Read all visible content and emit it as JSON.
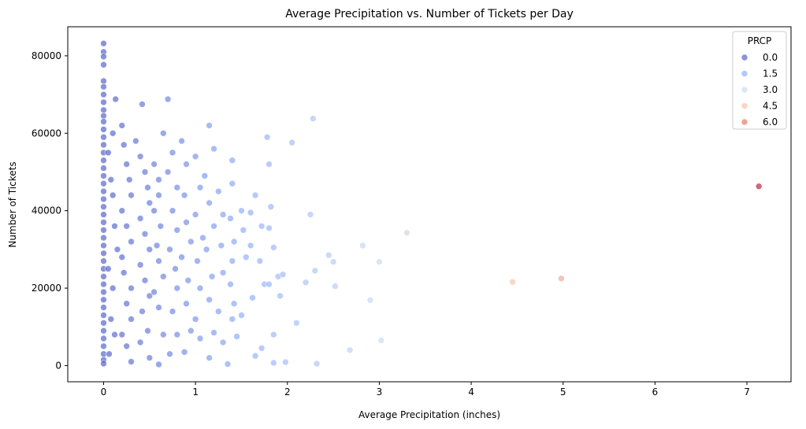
{
  "chart_data": {
    "type": "scatter",
    "title": "Average Precipitation vs. Number of Tickets per Day",
    "xlabel": "Average Precipitation (inches)",
    "ylabel": "Number of Tickets",
    "xlim": [
      -0.39,
      7.48
    ],
    "ylim": [
      -4180,
      87500
    ],
    "x_ticks": [
      0,
      1,
      2,
      3,
      4,
      5,
      6,
      7
    ],
    "y_ticks": [
      0,
      20000,
      40000,
      60000,
      80000
    ],
    "x_tick_labels": [
      "0",
      "1",
      "2",
      "3",
      "4",
      "5",
      "6",
      "7"
    ],
    "y_tick_labels": [
      "0",
      "20000",
      "40000",
      "60000",
      "80000"
    ],
    "grid": false,
    "hue_variable": "PRCP",
    "colormap": "coolwarm",
    "hue_range": [
      0,
      7.13
    ],
    "point_alpha": 0.6,
    "legend": {
      "title": "PRCP",
      "position": "top-right",
      "entries": [
        {
          "label": "0.0",
          "value": 0.0,
          "color": "#3b4cc0"
        },
        {
          "label": "1.5",
          "value": 1.5,
          "color": "#7ea1fa"
        },
        {
          "label": "3.0",
          "value": 3.0,
          "color": "#c3d5f4"
        },
        {
          "label": "4.5",
          "value": 4.5,
          "color": "#f7b99e"
        },
        {
          "label": "6.0",
          "value": 6.0,
          "color": "#e16852"
        }
      ]
    },
    "points": [
      [
        0,
        83200
      ],
      [
        0,
        81000
      ],
      [
        0,
        79800
      ],
      [
        0,
        77700
      ],
      [
        0,
        73500
      ],
      [
        0,
        72000
      ],
      [
        0,
        70000
      ],
      [
        0,
        68000
      ],
      [
        0,
        66000
      ],
      [
        0,
        64500
      ],
      [
        0,
        63000
      ],
      [
        0,
        61000
      ],
      [
        0,
        59000
      ],
      [
        0,
        57000
      ],
      [
        0,
        55000
      ],
      [
        0,
        53000
      ],
      [
        0,
        51000
      ],
      [
        0,
        49000
      ],
      [
        0,
        47000
      ],
      [
        0,
        45000
      ],
      [
        0,
        43000
      ],
      [
        0,
        41000
      ],
      [
        0,
        39000
      ],
      [
        0,
        37000
      ],
      [
        0,
        35000
      ],
      [
        0,
        33000
      ],
      [
        0,
        31000
      ],
      [
        0,
        29000
      ],
      [
        0,
        27000
      ],
      [
        0,
        25000
      ],
      [
        0,
        23000
      ],
      [
        0,
        21000
      ],
      [
        0,
        19000
      ],
      [
        0,
        17000
      ],
      [
        0,
        15000
      ],
      [
        0,
        13000
      ],
      [
        0,
        11000
      ],
      [
        0,
        9000
      ],
      [
        0,
        7000
      ],
      [
        0,
        5000
      ],
      [
        0,
        3000
      ],
      [
        0,
        1500
      ],
      [
        0,
        500
      ],
      [
        0.05,
        55000
      ],
      [
        0.08,
        48000
      ],
      [
        0.1,
        44000
      ],
      [
        0.12,
        36000
      ],
      [
        0.15,
        30000
      ],
      [
        0.05,
        25000
      ],
      [
        0.1,
        20000
      ],
      [
        0.08,
        12000
      ],
      [
        0.12,
        8000
      ],
      [
        0.06,
        3000
      ],
      [
        0.1,
        60000
      ],
      [
        0.13,
        68800
      ],
      [
        0.2,
        62000
      ],
      [
        0.22,
        57000
      ],
      [
        0.25,
        52000
      ],
      [
        0.28,
        48000
      ],
      [
        0.3,
        44000
      ],
      [
        0.2,
        40000
      ],
      [
        0.25,
        36000
      ],
      [
        0.3,
        32000
      ],
      [
        0.2,
        28000
      ],
      [
        0.22,
        24000
      ],
      [
        0.3,
        20000
      ],
      [
        0.25,
        16000
      ],
      [
        0.3,
        12000
      ],
      [
        0.2,
        8000
      ],
      [
        0.25,
        5000
      ],
      [
        0.3,
        1000
      ],
      [
        0.35,
        58000
      ],
      [
        0.4,
        54000
      ],
      [
        0.42,
        67500
      ],
      [
        0.45,
        50000
      ],
      [
        0.48,
        46000
      ],
      [
        0.5,
        42000
      ],
      [
        0.4,
        38000
      ],
      [
        0.45,
        34000
      ],
      [
        0.5,
        30000
      ],
      [
        0.4,
        26000
      ],
      [
        0.45,
        22000
      ],
      [
        0.5,
        18000
      ],
      [
        0.42,
        14000
      ],
      [
        0.48,
        9000
      ],
      [
        0.4,
        6000
      ],
      [
        0.5,
        2000
      ],
      [
        0.55,
        52000
      ],
      [
        0.6,
        48000
      ],
      [
        0.65,
        60000
      ],
      [
        0.6,
        44000
      ],
      [
        0.55,
        40000
      ],
      [
        0.62,
        36000
      ],
      [
        0.58,
        31000
      ],
      [
        0.6,
        27000
      ],
      [
        0.65,
        23000
      ],
      [
        0.55,
        19000
      ],
      [
        0.6,
        15000
      ],
      [
        0.65,
        8000
      ],
      [
        0.6,
        300
      ],
      [
        0.7,
        68800
      ],
      [
        0.75,
        55000
      ],
      [
        0.7,
        50000
      ],
      [
        0.8,
        46000
      ],
      [
        0.75,
        40000
      ],
      [
        0.8,
        35000
      ],
      [
        0.72,
        30000
      ],
      [
        0.78,
        25000
      ],
      [
        0.8,
        20000
      ],
      [
        0.75,
        14000
      ],
      [
        0.8,
        8000
      ],
      [
        0.72,
        3000
      ],
      [
        0.85,
        58000
      ],
      [
        0.9,
        52000
      ],
      [
        0.88,
        44000
      ],
      [
        0.9,
        37000
      ],
      [
        0.95,
        32000
      ],
      [
        0.85,
        28000
      ],
      [
        0.92,
        22000
      ],
      [
        0.9,
        16000
      ],
      [
        0.95,
        9000
      ],
      [
        0.88,
        3500
      ],
      [
        1.0,
        54000
      ],
      [
        1.05,
        46000
      ],
      [
        1.0,
        39000
      ],
      [
        1.08,
        33000
      ],
      [
        1.02,
        27000
      ],
      [
        1.05,
        20000
      ],
      [
        1.0,
        12000
      ],
      [
        1.05,
        7000
      ],
      [
        1.1,
        49000
      ],
      [
        1.15,
        62000
      ],
      [
        1.2,
        56000
      ],
      [
        1.15,
        42000
      ],
      [
        1.2,
        36000
      ],
      [
        1.12,
        30000
      ],
      [
        1.18,
        23000
      ],
      [
        1.15,
        17000
      ],
      [
        1.2,
        8500
      ],
      [
        1.15,
        2000
      ],
      [
        1.25,
        45000
      ],
      [
        1.3,
        39000
      ],
      [
        1.28,
        31000
      ],
      [
        1.3,
        24000
      ],
      [
        1.25,
        14000
      ],
      [
        1.3,
        6000
      ],
      [
        1.35,
        400
      ],
      [
        1.4,
        53000
      ],
      [
        1.4,
        47000
      ],
      [
        1.38,
        38000
      ],
      [
        1.42,
        32000
      ],
      [
        1.4,
        27000
      ],
      [
        1.38,
        21000
      ],
      [
        1.42,
        16000
      ],
      [
        1.4,
        12000
      ],
      [
        1.45,
        7500
      ],
      [
        1.5,
        40000
      ],
      [
        1.52,
        35000
      ],
      [
        1.55,
        28000
      ],
      [
        1.5,
        13000
      ],
      [
        1.6,
        39500
      ],
      [
        1.6,
        31000
      ],
      [
        1.62,
        17500
      ],
      [
        1.65,
        44000
      ],
      [
        1.65,
        2500
      ],
      [
        1.72,
        36000
      ],
      [
        1.7,
        27000
      ],
      [
        1.75,
        21000
      ],
      [
        1.72,
        4500
      ],
      [
        1.78,
        59000
      ],
      [
        1.8,
        52000
      ],
      [
        1.82,
        41000
      ],
      [
        1.8,
        35500
      ],
      [
        1.85,
        30500
      ],
      [
        1.8,
        21000
      ],
      [
        1.85,
        8000
      ],
      [
        1.85,
        700
      ],
      [
        1.9,
        23000
      ],
      [
        1.92,
        18000
      ],
      [
        1.95,
        23500
      ],
      [
        1.98,
        900
      ],
      [
        2.05,
        57600
      ],
      [
        2.1,
        11000
      ],
      [
        2.2,
        21500
      ],
      [
        2.25,
        39000
      ],
      [
        2.28,
        63800
      ],
      [
        2.3,
        24500
      ],
      [
        2.32,
        500
      ],
      [
        2.45,
        28500
      ],
      [
        2.5,
        26800
      ],
      [
        2.52,
        20500
      ],
      [
        2.68,
        4000
      ],
      [
        2.82,
        31000
      ],
      [
        2.9,
        16900
      ],
      [
        3.0,
        26800
      ],
      [
        3.02,
        6500
      ],
      [
        3.3,
        34300
      ],
      [
        4.45,
        21600
      ],
      [
        4.98,
        22500
      ],
      [
        7.13,
        46300
      ]
    ]
  }
}
